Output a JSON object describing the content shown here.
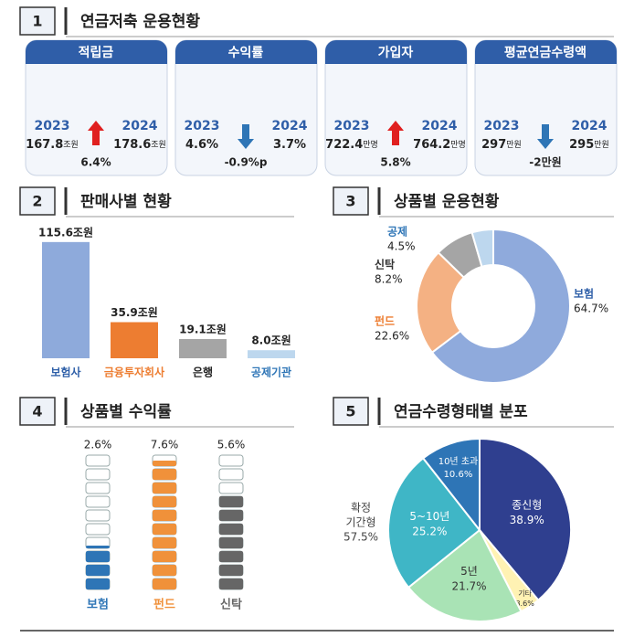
{
  "section1": {
    "number": 1,
    "title": "연금저축 운용현황",
    "cards": [
      {
        "title": "적립금",
        "year_from": 2023,
        "year_to": 2024,
        "from": "167.8",
        "from_unit": "조원",
        "to": "178.6",
        "to_unit": "조원",
        "change": "6.4%",
        "direction": "up"
      },
      {
        "title": "수익률",
        "year_from": 2023,
        "year_to": 2024,
        "from": "4.6%",
        "to": "3.7%",
        "change": "-0.9%p",
        "direction": "down"
      },
      {
        "title": "가입자",
        "year_from": 2023,
        "year_to": 2024,
        "from": "722.4",
        "from_unit": "만명",
        "to": "764.2",
        "to_unit": "만명",
        "change": "5.8%",
        "direction": "up"
      },
      {
        "title": "평균연금수령액",
        "year_from": 2023,
        "year_to": 2024,
        "from": "297",
        "from_unit": "만원",
        "to": "295",
        "to_unit": "만원",
        "change": "-2만원",
        "direction": "down"
      }
    ]
  },
  "chart_data": [
    {
      "type": "bar",
      "number": 2,
      "title": "판매사별 현황",
      "categories": [
        "보험사",
        "금융투자회사",
        "은행",
        "공제기관"
      ],
      "values": [
        115.6,
        35.9,
        19.1,
        8.0
      ],
      "value_labels": [
        "115.6조원",
        "35.9조원",
        "19.1조원",
        "8.0조원"
      ],
      "colors": [
        "#8eaadb",
        "#ed7d31",
        "#a5a5a5",
        "#bdd7ee"
      ],
      "ylim": [
        0,
        120
      ]
    },
    {
      "type": "donut",
      "number": 3,
      "title": "상품별 운용현황",
      "categories": [
        "보험",
        "펀드",
        "신탁",
        "공제"
      ],
      "values": [
        64.7,
        22.6,
        8.2,
        4.5
      ],
      "value_labels": [
        "64.7%",
        "22.6%",
        "8.2%",
        "4.5%"
      ],
      "colors": [
        "#8faadc",
        "#f4b183",
        "#a5a5a5",
        "#bdd7ee"
      ]
    },
    {
      "type": "blocks",
      "number": 4,
      "title": "상품별 수익률",
      "categories": [
        "보험",
        "펀드",
        "신탁"
      ],
      "values": [
        2.6,
        7.6,
        5.6
      ],
      "value_labels": [
        "2.6%",
        "7.6%",
        "5.6%"
      ],
      "colors": [
        "#2e75b6",
        "#f0913a",
        "#666666"
      ],
      "ylim": [
        0,
        8
      ]
    },
    {
      "type": "pie",
      "number": 5,
      "title": "연금수령형태별 분포",
      "categories": [
        "종신형",
        "기타",
        "5년",
        "5~10년",
        "10년 초과"
      ],
      "values": [
        38.9,
        3.6,
        21.7,
        25.2,
        10.6
      ],
      "value_labels": [
        "38.9%",
        "3.6%",
        "21.7%",
        "25.2%",
        "10.6%"
      ],
      "colors": [
        "#2f3f8f",
        "#fff2b3",
        "#a9e3b5",
        "#3fb6c6",
        "#2e75b6"
      ],
      "annotation": [
        "확정",
        "기간형",
        "57.5%"
      ]
    }
  ]
}
